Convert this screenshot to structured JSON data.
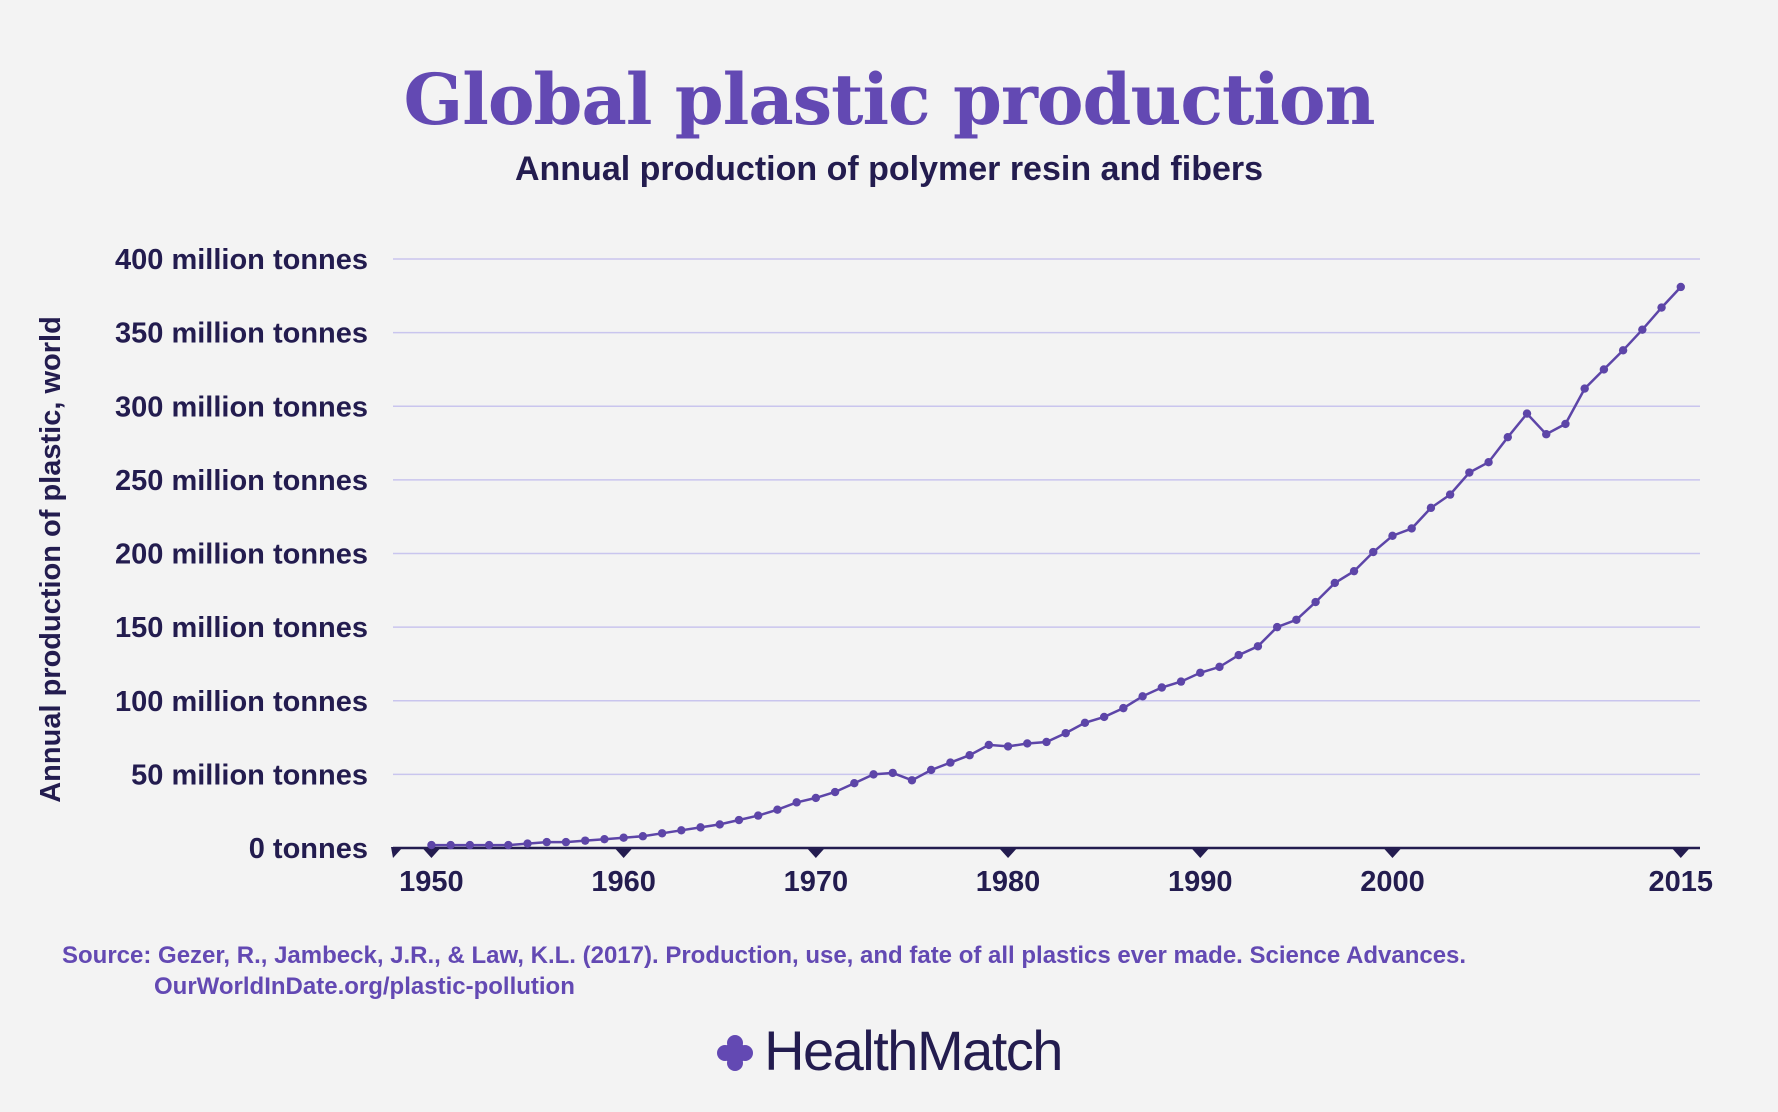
{
  "header": {
    "title": "Global plastic production",
    "subtitle": "Annual production of polymer resin and fibers"
  },
  "chart_data": {
    "type": "line",
    "title": "Global plastic production",
    "subtitle": "Annual production of polymer resin and fibers",
    "ylabel": "Annual production of plastic, world",
    "xlabel": "",
    "xlim": [
      1950,
      2015
    ],
    "ylim": [
      0,
      400
    ],
    "grid": true,
    "y_ticks": [
      {
        "value": 0,
        "label": "0 tonnes"
      },
      {
        "value": 50,
        "label": "50 million tonnes"
      },
      {
        "value": 100,
        "label": "100 million tonnes"
      },
      {
        "value": 150,
        "label": "150 million tonnes"
      },
      {
        "value": 200,
        "label": "200 million tonnes"
      },
      {
        "value": 250,
        "label": "250 million tonnes"
      },
      {
        "value": 300,
        "label": "300 million tonnes"
      },
      {
        "value": 350,
        "label": "350 million tonnes"
      },
      {
        "value": 400,
        "label": "400 million tonnes"
      }
    ],
    "x_ticks": [
      {
        "value": 1950,
        "label": "1950"
      },
      {
        "value": 1960,
        "label": "1960"
      },
      {
        "value": 1970,
        "label": "1970"
      },
      {
        "value": 1980,
        "label": "1980"
      },
      {
        "value": 1990,
        "label": "1990"
      },
      {
        "value": 2000,
        "label": "2000"
      },
      {
        "value": 2015,
        "label": "2015"
      }
    ],
    "x": [
      1950,
      1951,
      1952,
      1953,
      1954,
      1955,
      1956,
      1957,
      1958,
      1959,
      1960,
      1961,
      1962,
      1963,
      1964,
      1965,
      1966,
      1967,
      1968,
      1969,
      1970,
      1971,
      1972,
      1973,
      1974,
      1975,
      1976,
      1977,
      1978,
      1979,
      1980,
      1981,
      1982,
      1983,
      1984,
      1985,
      1986,
      1987,
      1988,
      1989,
      1990,
      1991,
      1992,
      1993,
      1994,
      1995,
      1996,
      1997,
      1998,
      1999,
      2000,
      2001,
      2002,
      2003,
      2004,
      2005,
      2006,
      2007,
      2008,
      2009,
      2010,
      2011,
      2012,
      2013,
      2014,
      2015
    ],
    "series": [
      {
        "color": "#5d45a8",
        "values": [
          2,
          2,
          2,
          2,
          2,
          3,
          4,
          4,
          5,
          6,
          7,
          8,
          10,
          12,
          14,
          16,
          19,
          22,
          26,
          31,
          34,
          38,
          44,
          50,
          51,
          46,
          53,
          58,
          63,
          70,
          69,
          71,
          72,
          78,
          85,
          89,
          95,
          103,
          109,
          113,
          119,
          123,
          131,
          137,
          150,
          155,
          167,
          180,
          188,
          201,
          212,
          217,
          231,
          240,
          255,
          262,
          279,
          295,
          281,
          288,
          312,
          325,
          338,
          352,
          367,
          381
        ]
      }
    ]
  },
  "footer": {
    "source_line1": "Source: Gezer, R., Jambeck, J.R., & Law, K.L. (2017). Production, use, and fate of all plastics ever made. Science Advances.",
    "source_line2": "OurWorldInDate.org/plastic-pollution",
    "brand": "HealthMatch",
    "brand_icon": "healthmatch-logo-icon"
  }
}
